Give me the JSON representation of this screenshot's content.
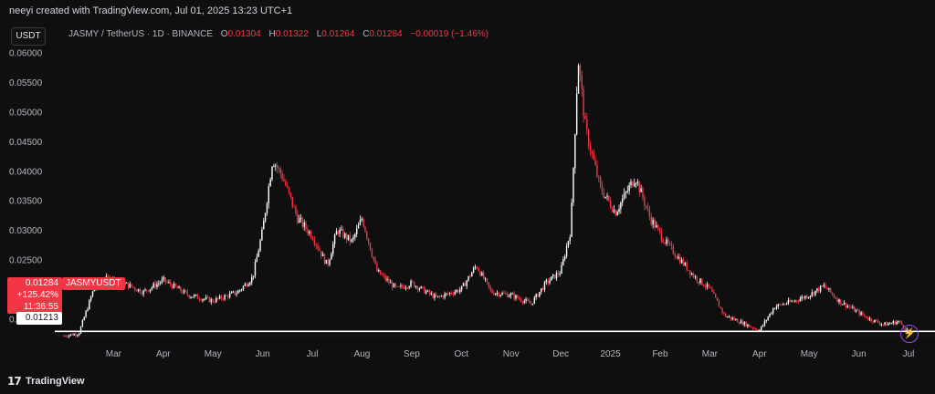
{
  "header": {
    "text": "neeyi created with TradingView.com, Jul 01, 2025 13:23 UTC+1"
  },
  "toolbar": {
    "currency": "USDT"
  },
  "legend": {
    "title": "JASMY / TetherUS · 1D · BINANCE",
    "o_label": "O",
    "o_value": "0.01304",
    "h_label": "H",
    "h_value": "0.01322",
    "l_label": "L",
    "l_value": "0.01264",
    "c_label": "C",
    "c_value": "0.01284",
    "change": "−0.00019 (−1.46%)"
  },
  "price_tag": {
    "price": "0.01284",
    "change": "+125.42%",
    "countdown": "11:36:55",
    "symbol": "JASMYUSDT"
  },
  "low_tag": {
    "price": "0.01213"
  },
  "footer": {
    "brand": "TradingView"
  },
  "colors": {
    "up": "#ffffff",
    "down": "#f23645",
    "accent": "#9b45ff"
  },
  "icons": {
    "bolt": "lightning-bolt-icon",
    "logo": "tradingview-logo-icon"
  },
  "chart_data": {
    "type": "candlestick",
    "title": "JASMY / TetherUS · 1D · BINANCE",
    "ylim": [
      0.0115,
      0.0615
    ],
    "y_ticks": [
      "0.06000",
      "0.05500",
      "0.05000",
      "0.04500",
      "0.04000",
      "0.03500",
      "0.03000",
      "0.02500",
      "0.02000",
      "0.01500"
    ],
    "y_tick_values": [
      0.06,
      0.055,
      0.05,
      0.045,
      0.04,
      0.035,
      0.03,
      0.025,
      0.02,
      0.015
    ],
    "x_ticks": [
      "Mar",
      "Apr",
      "May",
      "Jun",
      "Jul",
      "Aug",
      "Sep",
      "Oct",
      "Nov",
      "Dec",
      "2025",
      "Feb",
      "Mar",
      "Apr",
      "May",
      "Jun",
      "Jul"
    ],
    "x_tick_months": [
      2,
      3,
      4,
      5,
      6,
      7,
      8,
      9,
      10,
      11,
      12,
      13,
      14,
      15,
      16,
      17,
      18
    ],
    "current_price": 0.01284,
    "approx_close_by_month": [
      [
        1.0,
        0.0121
      ],
      [
        1.3,
        0.0125
      ],
      [
        1.6,
        0.02
      ],
      [
        1.9,
        0.022
      ],
      [
        2.2,
        0.021
      ],
      [
        2.6,
        0.0195
      ],
      [
        3.0,
        0.0215
      ],
      [
        3.5,
        0.019
      ],
      [
        4.0,
        0.018
      ],
      [
        4.5,
        0.0195
      ],
      [
        4.8,
        0.022
      ],
      [
        5.0,
        0.03
      ],
      [
        5.2,
        0.042
      ],
      [
        5.4,
        0.039
      ],
      [
        5.7,
        0.032
      ],
      [
        6.0,
        0.029
      ],
      [
        6.3,
        0.024
      ],
      [
        6.5,
        0.03
      ],
      [
        6.8,
        0.028
      ],
      [
        7.0,
        0.032
      ],
      [
        7.3,
        0.023
      ],
      [
        7.7,
        0.02
      ],
      [
        8.0,
        0.021
      ],
      [
        8.5,
        0.0185
      ],
      [
        9.0,
        0.02
      ],
      [
        9.3,
        0.024
      ],
      [
        9.6,
        0.0195
      ],
      [
        10.0,
        0.019
      ],
      [
        10.4,
        0.0175
      ],
      [
        10.7,
        0.021
      ],
      [
        11.0,
        0.023
      ],
      [
        11.2,
        0.03
      ],
      [
        11.35,
        0.059
      ],
      [
        11.5,
        0.047
      ],
      [
        11.8,
        0.037
      ],
      [
        12.1,
        0.033
      ],
      [
        12.5,
        0.039
      ],
      [
        12.8,
        0.032
      ],
      [
        13.1,
        0.028
      ],
      [
        13.4,
        0.025
      ],
      [
        13.7,
        0.022
      ],
      [
        14.0,
        0.02
      ],
      [
        14.3,
        0.0155
      ],
      [
        14.6,
        0.0145
      ],
      [
        15.0,
        0.013
      ],
      [
        15.3,
        0.017
      ],
      [
        15.7,
        0.018
      ],
      [
        16.0,
        0.019
      ],
      [
        16.3,
        0.0205
      ],
      [
        16.6,
        0.018
      ],
      [
        16.9,
        0.0165
      ],
      [
        17.2,
        0.015
      ],
      [
        17.5,
        0.014
      ],
      [
        17.8,
        0.0145
      ],
      [
        18.0,
        0.01284
      ]
    ]
  }
}
